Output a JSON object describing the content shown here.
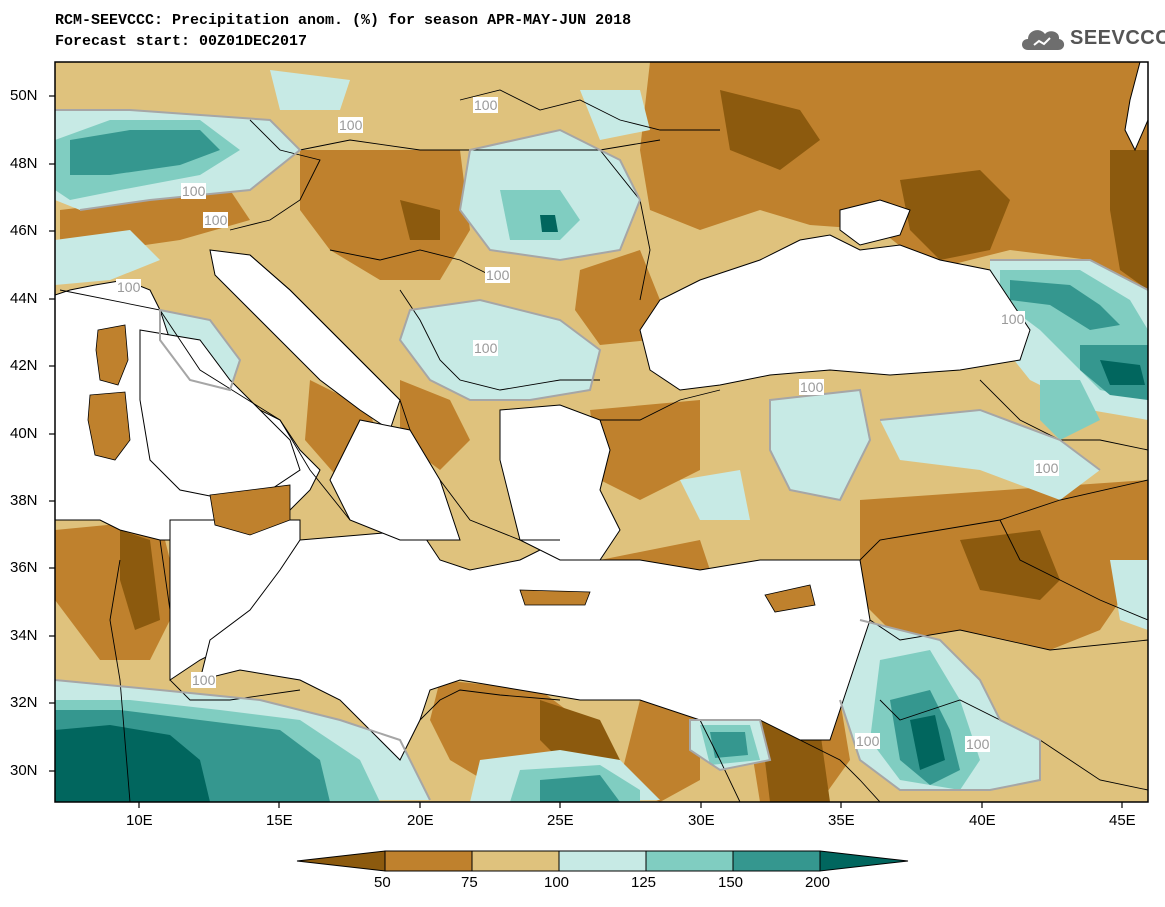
{
  "title": {
    "line1": "RCM-SEEVCCC: Precipitation anom. (%) for season APR-MAY-JUN 2018",
    "line2": "Forecast start: 00Z01DEC2017"
  },
  "logo": {
    "text": "SEEVCCC",
    "icon": "cloud-icon"
  },
  "map": {
    "lat_labels": [
      "50N",
      "48N",
      "46N",
      "44N",
      "42N",
      "40N",
      "38N",
      "36N",
      "34N",
      "32N",
      "30N"
    ],
    "lon_labels": [
      "10E",
      "15E",
      "20E",
      "25E",
      "30E",
      "35E",
      "40E",
      "45E"
    ],
    "contour_labels": [
      "100",
      "100",
      "100",
      "100",
      "100",
      "100",
      "100",
      "100",
      "100",
      "100",
      "100",
      "100",
      "100"
    ]
  },
  "colorbar": {
    "labels": [
      "50",
      "75",
      "100",
      "125",
      "150",
      "200"
    ],
    "colors": [
      "#8c5a0e",
      "#bf812d",
      "#dfc27d",
      "#c7eae5",
      "#80cdc1",
      "#35978f",
      "#01665e"
    ]
  }
}
